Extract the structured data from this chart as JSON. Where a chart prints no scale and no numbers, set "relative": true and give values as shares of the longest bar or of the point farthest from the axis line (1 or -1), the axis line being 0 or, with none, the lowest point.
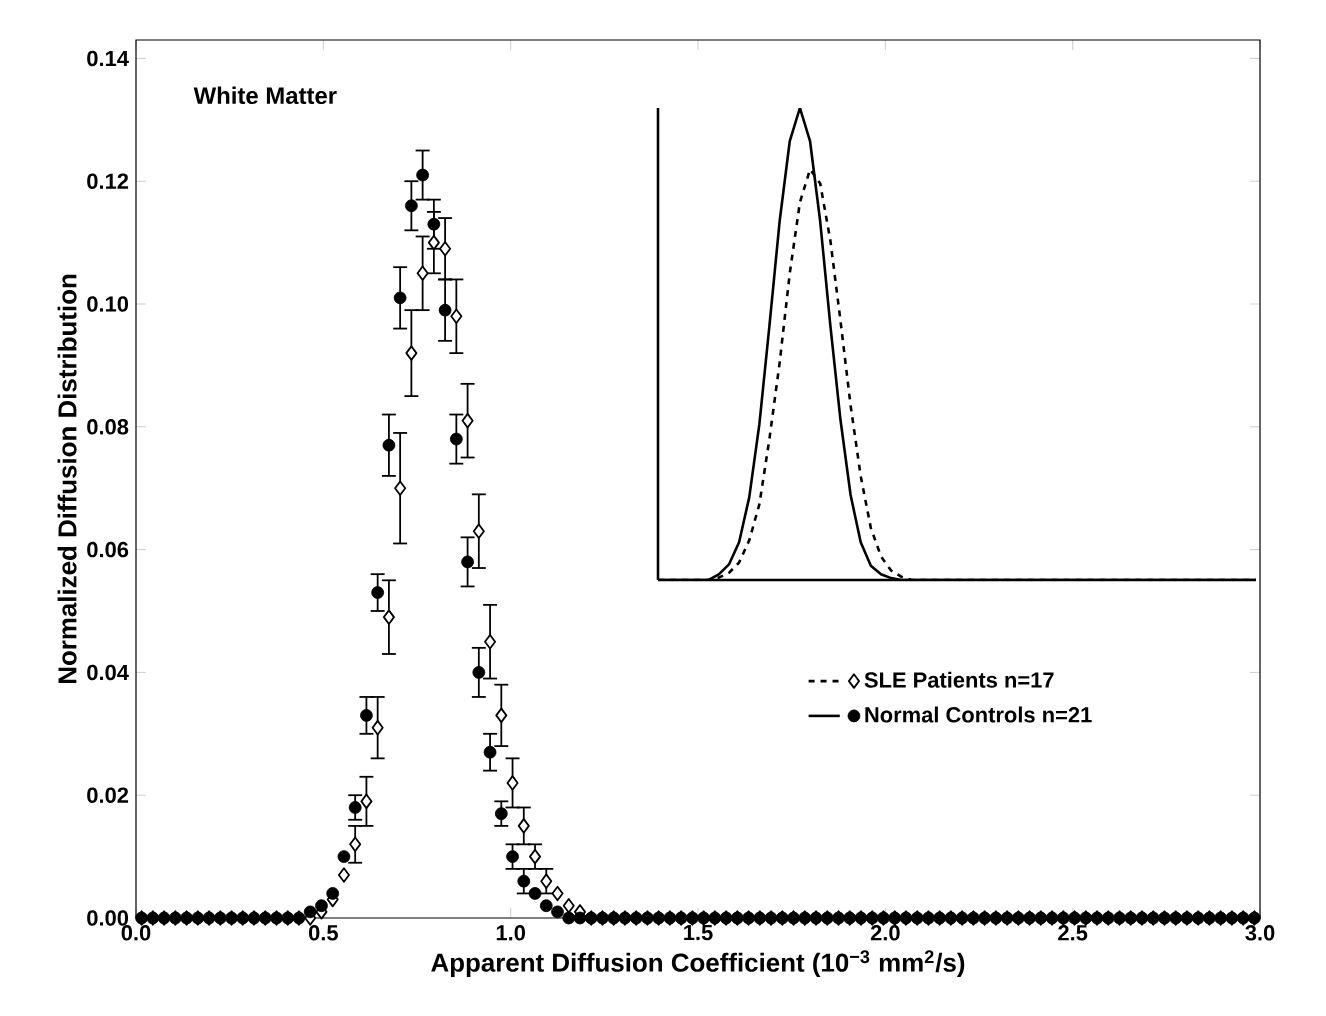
{
  "chart_data": [
    {
      "type": "scatter",
      "xlabel": "Apparent Diffusion Coefficient (10$^{−3}$ mm$^{2}$/s)",
      "ylabel": "Normalized Diffusion Distribution",
      "annotations": [
        "White Matter"
      ],
      "xlim": [
        0,
        3
      ],
      "ylim": [
        0,
        0.143
      ],
      "xticks": [
        {
          "value": 0,
          "label": "0.0"
        },
        {
          "value": 0.5,
          "label": "0.5"
        },
        {
          "value": 1,
          "label": "1.0"
        },
        {
          "value": 1.5,
          "label": "1.5"
        },
        {
          "value": 2,
          "label": "2.0"
        },
        {
          "value": 2.5,
          "label": "2.5"
        },
        {
          "value": 3,
          "label": "3.0"
        }
      ],
      "yticks": [
        {
          "value": 0,
          "label": "0.00"
        },
        {
          "value": 0.02,
          "label": "0.02"
        },
        {
          "value": 0.04,
          "label": "0.04"
        },
        {
          "value": 0.06,
          "label": "0.06"
        },
        {
          "value": 0.08,
          "label": "0.08"
        },
        {
          "value": 0.1,
          "label": "0.10"
        },
        {
          "value": 0.12,
          "label": "0.12"
        },
        {
          "value": 0.14,
          "label": "0.14"
        }
      ],
      "legend": "right",
      "x": [
        0.015,
        0.045,
        0.075,
        0.105,
        0.135,
        0.165,
        0.195,
        0.225,
        0.255,
        0.285,
        0.315,
        0.345,
        0.375,
        0.405,
        0.435,
        0.465,
        0.495,
        0.525,
        0.555,
        0.585,
        0.615,
        0.645,
        0.675,
        0.705,
        0.735,
        0.765,
        0.795,
        0.825,
        0.855,
        0.885,
        0.915,
        0.945,
        0.975,
        1.005,
        1.035,
        1.065,
        1.095,
        1.125,
        1.155,
        1.185,
        1.215,
        1.245,
        1.275,
        1.305,
        1.335,
        1.365,
        1.395,
        1.425,
        1.455,
        1.485,
        1.515,
        1.545,
        1.575,
        1.605,
        1.635,
        1.665,
        1.695,
        1.725,
        1.755,
        1.785,
        1.815,
        1.845,
        1.875,
        1.905,
        1.935,
        1.965,
        1.995,
        2.025,
        2.055,
        2.085,
        2.115,
        2.145,
        2.175,
        2.205,
        2.235,
        2.265,
        2.295,
        2.325,
        2.355,
        2.385,
        2.415,
        2.445,
        2.475,
        2.505,
        2.535,
        2.565,
        2.595,
        2.625,
        2.655,
        2.685,
        2.715,
        2.745,
        2.775,
        2.805,
        2.835,
        2.865,
        2.895,
        2.925,
        2.955,
        2.985
      ],
      "series": [
        {
          "name": "SLE Patients n=17",
          "color": "#000000",
          "marker": "diamond",
          "line_style": "dashed",
          "values": [
            0,
            0,
            0,
            0,
            0,
            0,
            0,
            0,
            0,
            0,
            0,
            0,
            0,
            0,
            0,
            0,
            0.001,
            0.003,
            0.007,
            0.012,
            0.019,
            0.031,
            0.049,
            0.07,
            0.092,
            0.105,
            0.11,
            0.109,
            0.098,
            0.081,
            0.063,
            0.045,
            0.033,
            0.022,
            0.015,
            0.01,
            0.006,
            0.004,
            0.002,
            0.001,
            0,
            0,
            0,
            0,
            0,
            0,
            0,
            0,
            0,
            0,
            0,
            0,
            0,
            0,
            0,
            0,
            0,
            0,
            0,
            0,
            0,
            0,
            0,
            0,
            0,
            0,
            0,
            0,
            0,
            0,
            0,
            0,
            0,
            0,
            0,
            0,
            0,
            0,
            0,
            0,
            0,
            0,
            0,
            0,
            0,
            0,
            0,
            0,
            0,
            0,
            0,
            0,
            0,
            0,
            0,
            0,
            0,
            0,
            0,
            0
          ],
          "errors": [
            null,
            null,
            null,
            null,
            null,
            null,
            null,
            null,
            null,
            null,
            null,
            null,
            null,
            null,
            null,
            null,
            null,
            null,
            null,
            0.003,
            0.004,
            0.005,
            0.006,
            0.009,
            0.007,
            0.006,
            0.005,
            0.005,
            0.006,
            0.006,
            0.006,
            0.006,
            0.005,
            0.004,
            0.003,
            0.002,
            0.002,
            null,
            null,
            null,
            null,
            null,
            null,
            null,
            null,
            null,
            null,
            null,
            null,
            null,
            null,
            null,
            null,
            null,
            null,
            null,
            null,
            null,
            null,
            null,
            null,
            null,
            null,
            null,
            null,
            null,
            null,
            null,
            null,
            null,
            null,
            null,
            null,
            null,
            null,
            null,
            null,
            null,
            null,
            null,
            null,
            null,
            null,
            null,
            null,
            null,
            null,
            null,
            null,
            null,
            null,
            null,
            null,
            null,
            null,
            null,
            null,
            null,
            null,
            null
          ]
        },
        {
          "name": "Normal Controls n=21",
          "color": "#000000",
          "marker": "circle",
          "line_style": "solid",
          "values": [
            0,
            0,
            0,
            0,
            0,
            0,
            0,
            0,
            0,
            0,
            0,
            0,
            0,
            0,
            0,
            0.001,
            0.002,
            0.004,
            0.01,
            0.018,
            0.033,
            0.053,
            0.077,
            0.101,
            0.116,
            0.121,
            0.113,
            0.099,
            0.078,
            0.058,
            0.04,
            0.027,
            0.017,
            0.01,
            0.006,
            0.004,
            0.002,
            0.001,
            0,
            0,
            0,
            0,
            0,
            0,
            0,
            0,
            0,
            0,
            0,
            0,
            0,
            0,
            0,
            0,
            0,
            0,
            0,
            0,
            0,
            0,
            0,
            0,
            0,
            0,
            0,
            0,
            0,
            0,
            0,
            0,
            0,
            0,
            0,
            0,
            0,
            0,
            0,
            0,
            0,
            0,
            0,
            0,
            0,
            0,
            0,
            0,
            0,
            0,
            0,
            0,
            0,
            0,
            0,
            0,
            0,
            0,
            0,
            0,
            0,
            0
          ],
          "errors": [
            null,
            null,
            null,
            null,
            null,
            null,
            null,
            null,
            null,
            null,
            null,
            null,
            null,
            null,
            null,
            null,
            null,
            null,
            null,
            0.002,
            0.003,
            0.003,
            0.005,
            0.005,
            0.004,
            0.004,
            0.004,
            0.005,
            0.004,
            0.004,
            0.004,
            0.003,
            0.002,
            0.002,
            0.002,
            null,
            null,
            null,
            null,
            null,
            null,
            null,
            null,
            null,
            null,
            null,
            null,
            null,
            null,
            null,
            null,
            null,
            null,
            null,
            null,
            null,
            null,
            null,
            null,
            null,
            null,
            null,
            null,
            null,
            null,
            null,
            null,
            null,
            null,
            null,
            null,
            null,
            null,
            null,
            null,
            null,
            null,
            null,
            null,
            null,
            null,
            null,
            null,
            null,
            null,
            null,
            null,
            null,
            null,
            null,
            null,
            null,
            null,
            null,
            null,
            null,
            null,
            null,
            null,
            null
          ]
        }
      ]
    },
    {
      "type": "line",
      "relative": true,
      "categories": [
        null,
        null,
        null,
        null,
        null,
        null,
        null,
        null,
        null,
        null,
        null,
        null,
        null,
        null,
        null,
        null,
        null,
        null,
        null,
        null,
        null,
        null,
        null,
        null,
        null,
        null,
        null,
        null,
        null,
        null,
        null,
        null,
        null,
        null,
        null,
        null,
        null,
        null,
        null,
        null,
        null,
        null,
        null,
        null,
        null,
        null,
        null,
        null,
        null,
        null,
        null,
        null,
        null,
        null,
        null,
        null,
        null,
        null,
        null,
        null
      ],
      "series": [
        {
          "color": "#000000",
          "line_style": "solid",
          "values": [
            0,
            0,
            0,
            0,
            0,
            0,
            0.012,
            0.033,
            0.08,
            0.175,
            0.33,
            0.54,
            0.76,
            0.93,
            1,
            0.93,
            0.76,
            0.54,
            0.34,
            0.18,
            0.08,
            0.03,
            0.012,
            0.004,
            0,
            0,
            0,
            0,
            0,
            0,
            0,
            0,
            0,
            0,
            0,
            0,
            0,
            0,
            0,
            0,
            0,
            0,
            0,
            0,
            0,
            0,
            0,
            0,
            0,
            0,
            0,
            0,
            0,
            0,
            0,
            0,
            0,
            0,
            0,
            0
          ]
        },
        {
          "color": "#000000",
          "line_style": "dashed",
          "values": [
            0,
            0,
            0,
            0,
            0,
            0,
            0.005,
            0.015,
            0.037,
            0.084,
            0.16,
            0.3,
            0.46,
            0.65,
            0.8,
            0.87,
            0.84,
            0.72,
            0.55,
            0.37,
            0.22,
            0.11,
            0.05,
            0.02,
            0.007,
            0,
            0,
            0,
            0,
            0,
            0,
            0,
            0,
            0,
            0,
            0,
            0,
            0,
            0,
            0,
            0,
            0,
            0,
            0,
            0,
            0,
            0,
            0,
            0,
            0,
            0,
            0,
            0,
            0,
            0,
            0,
            0,
            0,
            0,
            0
          ]
        }
      ]
    }
  ]
}
